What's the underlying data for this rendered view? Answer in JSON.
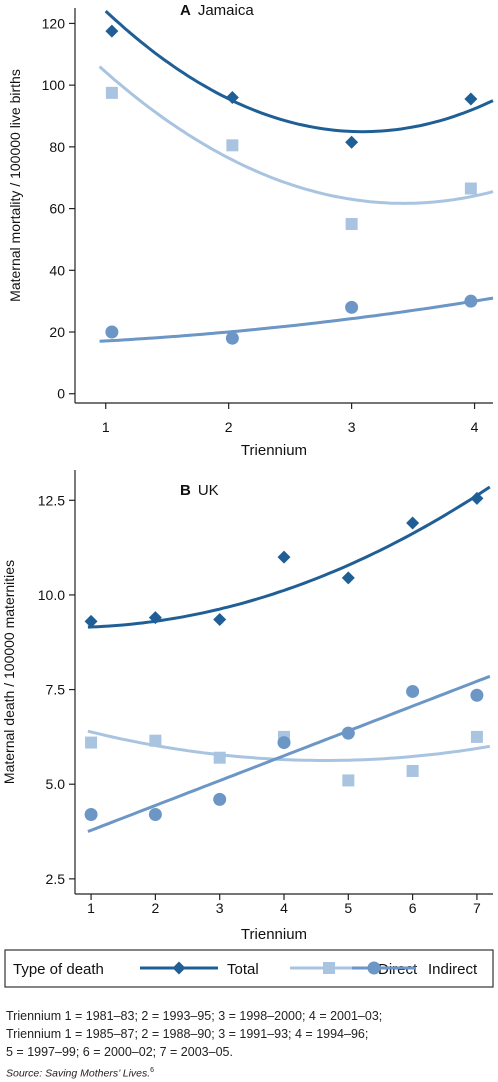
{
  "legend": {
    "title": "Type of death",
    "items": [
      {
        "key": "total",
        "label": "Total",
        "marker": "diamond"
      },
      {
        "key": "direct",
        "label": "Direct",
        "marker": "square"
      },
      {
        "key": "indirect",
        "label": "Indirect",
        "marker": "circle"
      }
    ]
  },
  "colors": {
    "total": "#1f5f96",
    "direct": "#a9c4e0",
    "indirect": "#6b96c6",
    "axis": "#222222"
  },
  "chart_data": [
    {
      "type": "scatter",
      "panel_label": "A",
      "title": "Jamaica",
      "xlabel": "Triennium",
      "ylabel": "Maternal mortality / 100000  live births",
      "xlim": [
        0.75,
        4.15
      ],
      "ylim": [
        -3,
        125
      ],
      "xticks": [
        1,
        2,
        3,
        4
      ],
      "yticks": [
        0,
        20,
        40,
        60,
        80,
        100,
        120
      ],
      "ytick_labels": [
        "0",
        "20",
        "40",
        "60",
        "80",
        "100",
        "120"
      ],
      "grid": false,
      "series": [
        {
          "name": "Total",
          "key": "total",
          "marker": "diamond",
          "x": [
            1.05,
            2.03,
            3.0,
            3.97
          ],
          "values": [
            117.5,
            96,
            81.5,
            95.5
          ],
          "trend": {
            "kind": "quadratic",
            "points": [
              [
                1,
                124
              ],
              [
                3,
                85
              ],
              [
                4.15,
                95
              ]
            ]
          }
        },
        {
          "name": "Direct",
          "key": "direct",
          "marker": "square",
          "x": [
            1.05,
            2.03,
            3.0,
            3.97
          ],
          "values": [
            97.5,
            80.5,
            55,
            66.5
          ],
          "trend": {
            "kind": "quadratic",
            "points": [
              [
                0.95,
                106
              ],
              [
                3,
                63
              ],
              [
                4.15,
                65.5
              ]
            ]
          }
        },
        {
          "name": "Indirect",
          "key": "indirect",
          "marker": "circle",
          "x": [
            1.05,
            2.03,
            3.0,
            3.97
          ],
          "values": [
            20,
            18,
            28,
            30
          ],
          "trend": {
            "kind": "quadratic",
            "points": [
              [
                0.95,
                17
              ],
              [
                2.5,
                22
              ],
              [
                4.15,
                31
              ]
            ]
          }
        }
      ]
    },
    {
      "type": "scatter",
      "panel_label": "B",
      "title": "UK",
      "xlabel": "Triennium",
      "ylabel": "Maternal death / 100000  maternities",
      "xlim": [
        0.75,
        7.25
      ],
      "ylim": [
        2.1,
        13.3
      ],
      "xticks": [
        1,
        2,
        3,
        4,
        5,
        6,
        7
      ],
      "yticks": [
        2.5,
        5.0,
        7.5,
        10.0,
        12.5
      ],
      "ytick_labels": [
        "2.5",
        "5.0",
        "7.5",
        "10.0",
        "12.5"
      ],
      "grid": false,
      "series": [
        {
          "name": "Total",
          "key": "total",
          "marker": "diamond",
          "x": [
            1,
            2,
            3,
            4,
            5,
            6,
            7
          ],
          "values": [
            9.3,
            9.4,
            9.35,
            11.0,
            10.45,
            11.9,
            12.55
          ],
          "trend": {
            "kind": "quadratic",
            "points": [
              [
                0.95,
                9.15
              ],
              [
                4,
                10.12
              ],
              [
                7.2,
                12.85
              ]
            ]
          }
        },
        {
          "name": "Direct",
          "key": "direct",
          "marker": "square",
          "x": [
            1,
            2,
            3,
            4,
            5,
            6,
            7
          ],
          "values": [
            6.1,
            6.15,
            5.7,
            6.25,
            5.1,
            5.35,
            6.25
          ],
          "trend": {
            "kind": "quadratic",
            "points": [
              [
                0.95,
                6.4
              ],
              [
                4,
                5.65
              ],
              [
                7.2,
                6.0
              ]
            ]
          }
        },
        {
          "name": "Indirect",
          "key": "indirect",
          "marker": "circle",
          "x": [
            1,
            2,
            3,
            4,
            5,
            6,
            7
          ],
          "values": [
            4.2,
            4.2,
            4.6,
            6.1,
            6.35,
            7.45,
            7.35
          ],
          "trend": {
            "kind": "linear",
            "points": [
              [
                0.95,
                3.75
              ],
              [
                7.2,
                7.85
              ]
            ]
          }
        }
      ]
    }
  ],
  "footnotes": {
    "line1": "Triennium 1 = 1981–83; 2 = 1993–95; 3 = 1998–2000; 4 = 2001–03;",
    "line2": "Triennium 1 = 1985–87; 2 = 1988–90; 3 = 1991–93; 4 = 1994–96;",
    "line3": "5 = 1997–99; 6 = 2000–02; 7 = 2003–05.",
    "source_label": "Source",
    "source_text": ": Saving Mothers’ Lives.",
    "source_ref": "6"
  }
}
